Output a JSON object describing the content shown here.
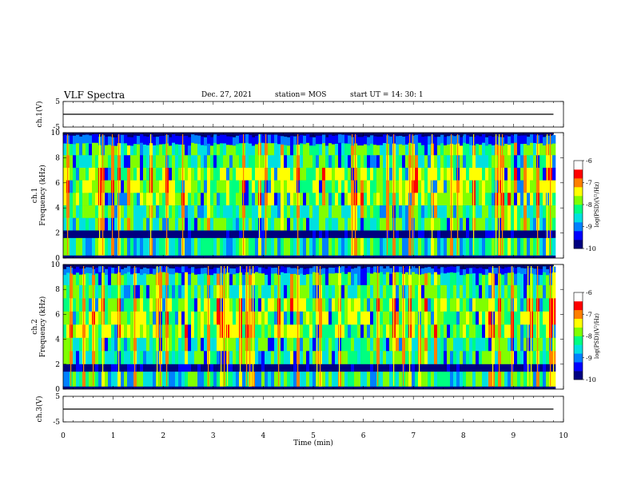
{
  "header": {
    "title": "VLF Spectra",
    "date": "Dec. 27, 2021",
    "station": "station= MOS",
    "start": "start  UT =   14: 30: 1"
  },
  "colors": {
    "colormap": [
      "#000080",
      "#0000ff",
      "#0080ff",
      "#00e0e0",
      "#00ff80",
      "#80ff00",
      "#ffff00",
      "#ff8000",
      "#ff0000",
      "#ffffff"
    ],
    "trace": "#000000"
  },
  "chart_data": [
    {
      "type": "line",
      "ylabel": "ch.1(V)",
      "ylim": [
        -5,
        5
      ],
      "yticks": [
        "5",
        "-5"
      ],
      "xlim": [
        0,
        10
      ],
      "series": [
        {
          "x": [
            0,
            9.8
          ],
          "y": [
            0,
            0
          ]
        }
      ]
    },
    {
      "type": "heatmap",
      "ylabel": "ch.1\nFrequency (kHz)",
      "ylim": [
        0,
        10
      ],
      "yticks": [
        "0",
        "2",
        "4",
        "6",
        "8",
        "10"
      ],
      "xlim": [
        0,
        10
      ],
      "data_xmax": 9.8,
      "zlabel": "log(PSD)(V²/Hz)",
      "zticks": [
        "-6",
        "-7",
        "-8",
        "-9",
        "-10"
      ],
      "zlim": [
        -10,
        -6
      ],
      "bands": {
        "strong_khz": [
          2.2,
          9.2
        ],
        "quiet_khz": [
          1.6,
          2.2
        ],
        "low_khz": [
          0.2,
          1.6
        ]
      }
    },
    {
      "type": "heatmap",
      "ylabel": "ch.2\nFrequency (kHz)",
      "ylim": [
        0,
        10
      ],
      "yticks": [
        "0",
        "2",
        "4",
        "6",
        "8",
        "10"
      ],
      "xlim": [
        0,
        10
      ],
      "data_xmax": 9.8,
      "zlabel": "log(PSD)(V²/Hz)",
      "zticks": [
        "-6",
        "-7",
        "-8",
        "-9",
        "-10"
      ],
      "zlim": [
        -10,
        -6
      ],
      "bands": {
        "strong_khz": [
          2.0,
          9.4
        ],
        "quiet_khz": [
          1.4,
          2.0
        ],
        "low_khz": [
          0.2,
          1.4
        ]
      }
    },
    {
      "type": "line",
      "ylabel": "ch.3(V)",
      "ylim": [
        -5,
        5
      ],
      "yticks": [
        "5",
        "-5"
      ],
      "xlim": [
        0,
        10
      ],
      "series": [
        {
          "x": [
            0,
            9.8
          ],
          "y": [
            0,
            0
          ]
        }
      ]
    }
  ],
  "xaxis": {
    "label": "Time  (min)",
    "ticks": [
      "0",
      "1",
      "2",
      "3",
      "4",
      "5",
      "6",
      "7",
      "8",
      "9",
      "10"
    ]
  }
}
